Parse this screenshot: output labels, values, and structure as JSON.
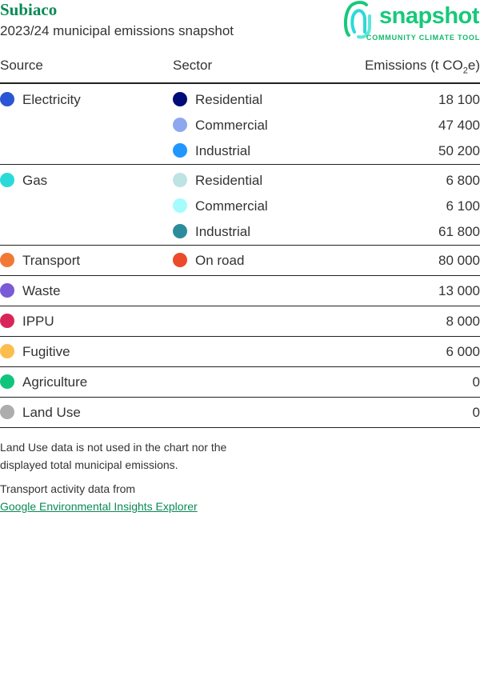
{
  "header": {
    "title": "Subiaco",
    "subtitle": "2023/24 municipal emissions snapshot",
    "logo": {
      "word": "snapshot",
      "tagline": "COMMUNITY CLIMATE TOOL",
      "color": "#17c97a"
    }
  },
  "table": {
    "columns": [
      "Source",
      "Sector",
      "Emissions (t CO",
      "2",
      "e)"
    ],
    "rows": [
      {
        "source": "Electricity",
        "source_color": "#2a55d4",
        "sector": "Residential",
        "sector_color": "#020c78",
        "value": "18 100"
      },
      {
        "source": "",
        "sector": "Commercial",
        "sector_color": "#8ea8ef",
        "value": "47 400"
      },
      {
        "source": "",
        "sector": "Industrial",
        "sector_color": "#2196ff",
        "value": "50 200"
      },
      {
        "source": "Gas",
        "source_color": "#2adad9",
        "sector": "Residential",
        "sector_color": "#bde3e3",
        "value": "6 800"
      },
      {
        "source": "",
        "sector": "Commercial",
        "sector_color": "#a4fcfd",
        "value": "6 100"
      },
      {
        "source": "",
        "sector": "Industrial",
        "sector_color": "#2c8c9c",
        "value": "61 800"
      },
      {
        "source": "Transport",
        "source_color": "#f27935",
        "sector": "On road",
        "sector_color": "#ec4a2a",
        "value": "80 000"
      },
      {
        "source": "Waste",
        "source_color": "#7a5ad6",
        "sector": "",
        "value": "13 000"
      },
      {
        "source": "IPPU",
        "source_color": "#d9245a",
        "sector": "",
        "value": "8 000"
      },
      {
        "source": "Fugitive",
        "source_color": "#fbbd4c",
        "sector": "",
        "value": "6 000"
      },
      {
        "source": "Agriculture",
        "source_color": "#10c47d",
        "sector": "",
        "value": "0"
      },
      {
        "source": "Land Use",
        "source_color": "#adadad",
        "sector": "",
        "value": "0"
      }
    ]
  },
  "notes": {
    "land_use": "Land Use data is not used in the chart nor the displayed total municipal emissions.",
    "transport_prefix": "Transport activity data from",
    "transport_link": "Google Environmental Insights Explorer"
  }
}
